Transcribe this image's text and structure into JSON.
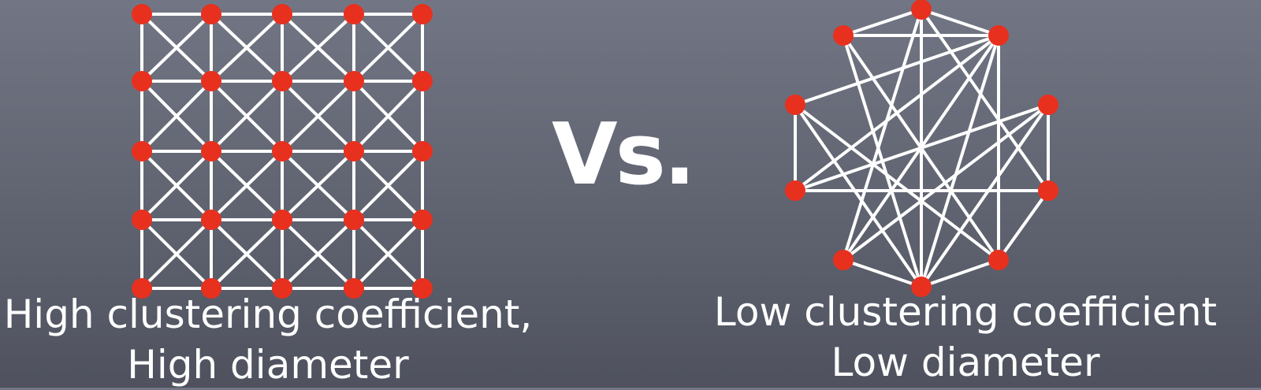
{
  "vs_label": "Vs.",
  "left_network": {
    "caption_line1": "High clustering coefficient,",
    "caption_line2": "High diameter"
  },
  "right_network": {
    "caption_line1": "Low clustering coefficient",
    "caption_line2": "Low diameter"
  },
  "colors": {
    "node": "#e8301f",
    "edge": "#ffffff",
    "text": "#ffffff"
  }
}
